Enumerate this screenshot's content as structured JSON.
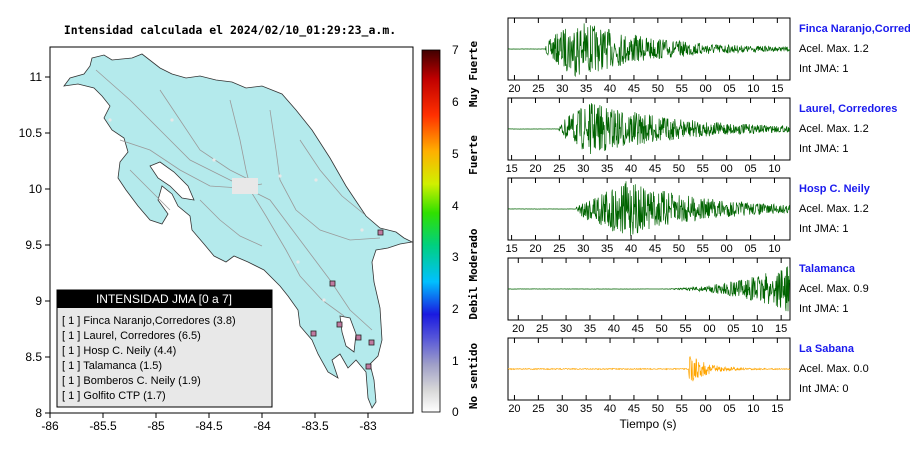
{
  "map": {
    "title": "Intensidad calculada el 2024/02/10_01:29:23_a.m.",
    "x_ticks": [
      "-86",
      "-85.5",
      "-85",
      "-84.5",
      "-84",
      "-83.5",
      "-83"
    ],
    "y_ticks": [
      "11",
      "10.5",
      "10",
      "9.5",
      "9",
      "8.5",
      "8"
    ],
    "colors": {
      "land": "#b4eaec",
      "water": "#ffffff",
      "station_marker": "#c07aa0"
    }
  },
  "legend": {
    "title": "INTENSIDAD JMA [0 a 7]",
    "items": [
      "[ 1 ]  Finca Naranjo,Corredores (3.8)",
      "[ 1 ]  Laurel, Corredores (6.5)",
      "[ 1 ]  Hosp C. Neily (4.4)",
      "[ 1 ]  Talamanca (1.5)",
      "[ 1 ]  Bomberos C. Neily (1.9)",
      "[ 1 ]  Golfito CTP (1.7)"
    ]
  },
  "colorbar": {
    "ticks": [
      "7",
      "6",
      "5",
      "4",
      "3",
      "2",
      "1",
      "0"
    ],
    "labels": [
      "Muy Fuerte",
      "Fuerte",
      "Moderado",
      "Debil",
      "No sentido"
    ]
  },
  "chart_data": [
    {
      "type": "line",
      "station": "Finca Naranjo,Corredor",
      "accel_label": "Acel. Max. 1.2",
      "int_label": "Int JMA: 1",
      "x_tick_labels": [
        "20",
        "25",
        "30",
        "35",
        "40",
        "45",
        "50",
        "55",
        "00",
        "05",
        "10",
        "15"
      ],
      "color": "#006400"
    },
    {
      "type": "line",
      "station": "Laurel, Corredores",
      "accel_label": "Acel. Max. 1.2",
      "int_label": "Int JMA: 1",
      "x_tick_labels": [
        "15",
        "20",
        "25",
        "30",
        "35",
        "40",
        "45",
        "50",
        "55",
        "00",
        "05",
        "10"
      ],
      "color": "#006400"
    },
    {
      "type": "line",
      "station": "Hosp C. Neily",
      "accel_label": "Acel. Max. 1.2",
      "int_label": "Int JMA: 1",
      "x_tick_labels": [
        "15",
        "20",
        "25",
        "30",
        "35",
        "40",
        "45",
        "50",
        "55",
        "00",
        "05",
        "10"
      ],
      "color": "#006400"
    },
    {
      "type": "line",
      "station": "Talamanca",
      "accel_label": "Acel. Max. 0.9",
      "int_label": "Int JMA: 1",
      "x_tick_labels": [
        "20",
        "25",
        "30",
        "35",
        "40",
        "45",
        "50",
        "55",
        "00",
        "05",
        "10",
        "15"
      ],
      "color": "#006400"
    },
    {
      "type": "line",
      "station": "La Sabana",
      "accel_label": "Acel. Max. 0.0",
      "int_label": "Int JMA: 0",
      "x_tick_labels": [
        "20",
        "25",
        "30",
        "35",
        "40",
        "45",
        "50",
        "55",
        "00",
        "05",
        "10",
        "15"
      ],
      "color": "#ffa500"
    }
  ],
  "xlabel": "Tiempo (s)",
  "accent": {
    "station_name": "#1a1aee"
  }
}
